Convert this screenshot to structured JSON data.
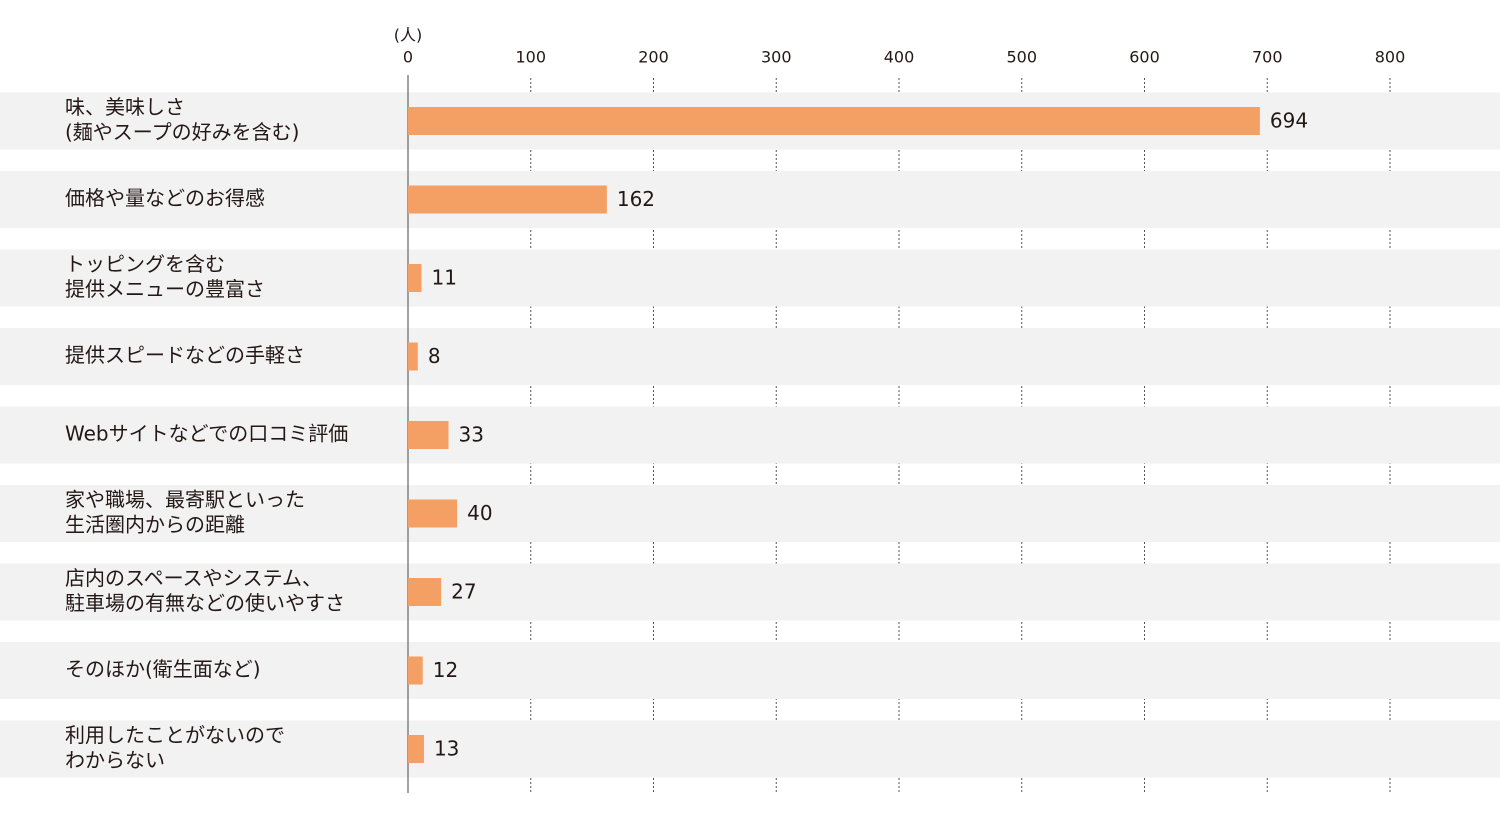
{
  "chart_data": {
    "type": "barh",
    "axis_unit": "(人)",
    "categories": [
      [
        "味、美味しさ",
        "(麺やスープの好みを含む)"
      ],
      [
        "価格や量などのお得感"
      ],
      [
        "トッピングを含む",
        "提供メニューの豊富さ"
      ],
      [
        "提供スピードなどの手軽さ"
      ],
      [
        "Webサイトなどでの口コミ評価"
      ],
      [
        "家や職場、最寄駅といった",
        "生活圏内からの距離"
      ],
      [
        "店内のスペースやシステム、",
        "駐車場の有無などの使いやすさ"
      ],
      [
        "そのほか(衛生面など)"
      ],
      [
        "利用したことがないので",
        "わからない"
      ]
    ],
    "values": [
      694,
      162,
      11,
      8,
      33,
      40,
      27,
      12,
      13
    ],
    "color": "#f4a064",
    "xlim": [
      0,
      800
    ],
    "xticks": [
      0,
      100,
      200,
      300,
      400,
      500,
      600,
      700,
      800
    ],
    "grid": true
  }
}
